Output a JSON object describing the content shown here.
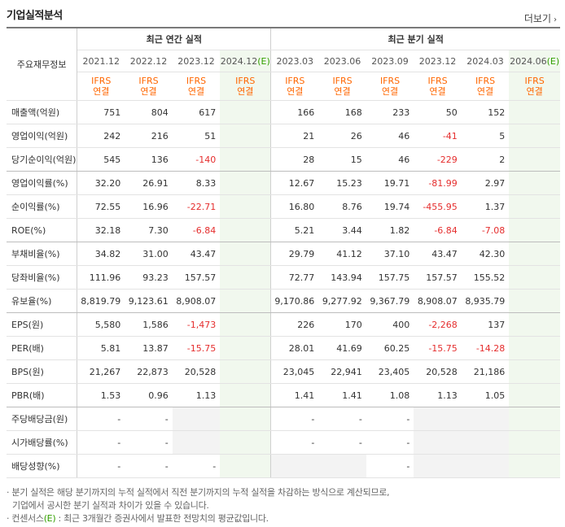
{
  "title": "기업실적분석",
  "more_label": "더보기",
  "header": {
    "row_label": "주요재무정보",
    "annual_group": "최근 연간 실적",
    "quarter_group": "최근 분기 실적",
    "annual_periods": [
      "2021.12",
      "2022.12",
      "2023.12",
      "2024.12"
    ],
    "annual_est_suffix": "(E)",
    "quarter_periods": [
      "2023.03",
      "2023.06",
      "2023.09",
      "2023.12",
      "2024.03",
      "2024.06"
    ],
    "quarter_est_suffix": "(E)",
    "basis_top": "IFRS",
    "basis_bottom": "연결"
  },
  "rows": [
    {
      "label": "매출액(억원)",
      "annual": [
        "751",
        "804",
        "617",
        ""
      ],
      "quarter": [
        "166",
        "168",
        "233",
        "50",
        "152",
        ""
      ]
    },
    {
      "label": "영업이익(억원)",
      "annual": [
        "242",
        "216",
        "51",
        ""
      ],
      "quarter": [
        "21",
        "26",
        "46",
        "-41",
        "5",
        ""
      ]
    },
    {
      "label": "당기순이익(억원)",
      "annual": [
        "545",
        "136",
        "-140",
        ""
      ],
      "quarter": [
        "28",
        "15",
        "46",
        "-229",
        "2",
        ""
      ]
    },
    {
      "label": "영업이익률(%)",
      "annual": [
        "32.20",
        "26.91",
        "8.33",
        ""
      ],
      "quarter": [
        "12.67",
        "15.23",
        "19.71",
        "-81.99",
        "2.97",
        ""
      ]
    },
    {
      "label": "순이익률(%)",
      "annual": [
        "72.55",
        "16.96",
        "-22.71",
        ""
      ],
      "quarter": [
        "16.80",
        "8.76",
        "19.74",
        "-455.95",
        "1.37",
        ""
      ]
    },
    {
      "label": "ROE(%)",
      "annual": [
        "32.18",
        "7.30",
        "-6.84",
        ""
      ],
      "quarter": [
        "5.21",
        "3.44",
        "1.82",
        "-6.84",
        "-7.08",
        ""
      ]
    },
    {
      "label": "부채비율(%)",
      "annual": [
        "34.82",
        "31.00",
        "43.47",
        ""
      ],
      "quarter": [
        "29.79",
        "41.12",
        "37.10",
        "43.47",
        "42.30",
        ""
      ]
    },
    {
      "label": "당좌비율(%)",
      "annual": [
        "111.96",
        "93.23",
        "157.57",
        ""
      ],
      "quarter": [
        "72.77",
        "143.94",
        "157.75",
        "157.57",
        "155.52",
        ""
      ]
    },
    {
      "label": "유보율(%)",
      "annual": [
        "8,819.79",
        "9,123.61",
        "8,908.07",
        ""
      ],
      "quarter": [
        "9,170.86",
        "9,277.92",
        "9,367.79",
        "8,908.07",
        "8,935.79",
        ""
      ]
    },
    {
      "label": "EPS(원)",
      "annual": [
        "5,580",
        "1,586",
        "-1,473",
        ""
      ],
      "quarter": [
        "226",
        "170",
        "400",
        "-2,268",
        "137",
        ""
      ]
    },
    {
      "label": "PER(배)",
      "annual": [
        "5.81",
        "13.87",
        "-15.75",
        ""
      ],
      "quarter": [
        "28.01",
        "41.69",
        "60.25",
        "-15.75",
        "-14.28",
        ""
      ]
    },
    {
      "label": "BPS(원)",
      "annual": [
        "21,267",
        "22,873",
        "20,528",
        ""
      ],
      "quarter": [
        "23,045",
        "22,941",
        "23,405",
        "20,528",
        "21,186",
        ""
      ]
    },
    {
      "label": "PBR(배)",
      "annual": [
        "1.53",
        "0.96",
        "1.13",
        ""
      ],
      "quarter": [
        "1.41",
        "1.41",
        "1.08",
        "1.13",
        "1.05",
        ""
      ]
    },
    {
      "label": "주당배당금(원)",
      "annual": [
        "-",
        "-",
        "",
        ""
      ],
      "quarter": [
        "-",
        "-",
        "-",
        "",
        "",
        ""
      ]
    },
    {
      "label": "시가배당률(%)",
      "annual": [
        "-",
        "-",
        "",
        ""
      ],
      "quarter": [
        "-",
        "-",
        "-",
        "",
        "",
        ""
      ]
    },
    {
      "label": "배당성향(%)",
      "annual": [
        "-",
        "-",
        "-",
        ""
      ],
      "quarter": [
        "",
        "",
        "-",
        "",
        "",
        ""
      ]
    }
  ],
  "gray_cells": {
    "13": {
      "annual": [
        2
      ],
      "quarter": [
        3,
        4
      ]
    },
    "14": {
      "annual": [
        2
      ],
      "quarter": [
        3,
        4
      ]
    },
    "15": {
      "annual": [],
      "quarter": [
        0,
        1,
        3,
        4
      ]
    }
  },
  "notes": {
    "line1": "분기 실적은 해당 분기까지의 누적 실적에서 직전 분기까지의 누적 실적을 차감하는 방식으로 계산되므로,",
    "line2": "기업에서 공시한 분기 실적과 차이가 있을 수 있습니다.",
    "line3_prefix": "컨센서스",
    "line3_est": "(E)",
    "line3_rest": " : 최근 3개월간 증권사에서 발표한 전망치의 평균값입니다."
  },
  "colors": {
    "negative": "#e52d2d",
    "basis": "#ff6600",
    "estimate_bg": "#f1f8ee",
    "estimate_mark": "#33a000"
  }
}
